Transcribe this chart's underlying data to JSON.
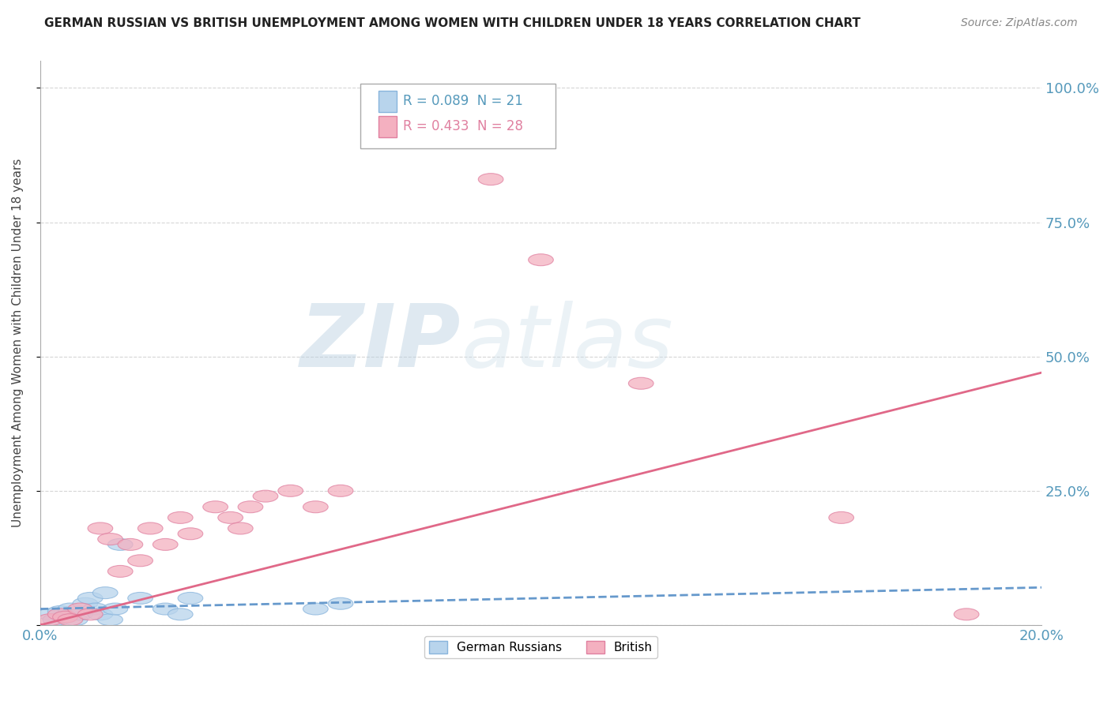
{
  "title": "GERMAN RUSSIAN VS BRITISH UNEMPLOYMENT AMONG WOMEN WITH CHILDREN UNDER 18 YEARS CORRELATION CHART",
  "source": "Source: ZipAtlas.com",
  "ylabel": "Unemployment Among Women with Children Under 18 years",
  "watermark_zip": "ZIP",
  "watermark_atlas": "atlas",
  "legend1_text": "R = 0.089  N = 21",
  "legend2_text": "R = 0.433  N = 28",
  "color_blue_fill": "#b8d4ec",
  "color_blue_edge": "#88b4dc",
  "color_pink_fill": "#f4b0c0",
  "color_pink_edge": "#e080a0",
  "color_line_blue": "#6699cc",
  "color_line_pink": "#e06888",
  "color_axis": "#5599bb",
  "color_grid": "#cccccc",
  "background": "#ffffff",
  "gr_x": [
    0.002,
    0.003,
    0.004,
    0.005,
    0.006,
    0.007,
    0.008,
    0.009,
    0.01,
    0.011,
    0.012,
    0.013,
    0.014,
    0.015,
    0.016,
    0.02,
    0.025,
    0.028,
    0.03,
    0.055,
    0.06
  ],
  "gr_y": [
    0.02,
    0.01,
    0.025,
    0.015,
    0.03,
    0.01,
    0.02,
    0.04,
    0.05,
    0.03,
    0.02,
    0.06,
    0.01,
    0.03,
    0.15,
    0.05,
    0.03,
    0.02,
    0.05,
    0.03,
    0.04
  ],
  "br_x": [
    0.002,
    0.004,
    0.005,
    0.006,
    0.008,
    0.01,
    0.012,
    0.014,
    0.016,
    0.018,
    0.02,
    0.022,
    0.025,
    0.028,
    0.03,
    0.035,
    0.038,
    0.04,
    0.042,
    0.045,
    0.05,
    0.055,
    0.06,
    0.09,
    0.1,
    0.12,
    0.16,
    0.185
  ],
  "br_y": [
    0.01,
    0.02,
    0.015,
    0.01,
    0.03,
    0.02,
    0.18,
    0.16,
    0.1,
    0.15,
    0.12,
    0.18,
    0.15,
    0.2,
    0.17,
    0.22,
    0.2,
    0.18,
    0.22,
    0.24,
    0.25,
    0.22,
    0.25,
    0.83,
    0.68,
    0.45,
    0.2,
    0.02
  ],
  "x_min": 0.0,
  "x_max": 0.2,
  "y_min": 0.0,
  "y_max": 1.05,
  "y_ticks": [
    0.0,
    0.25,
    0.5,
    0.75,
    1.0
  ],
  "y_tick_labels": [
    "",
    "25.0%",
    "50.0%",
    "75.0%",
    "100.0%"
  ],
  "x_ticks": [
    0.0,
    0.2
  ],
  "x_tick_labels": [
    "0.0%",
    "20.0%"
  ]
}
